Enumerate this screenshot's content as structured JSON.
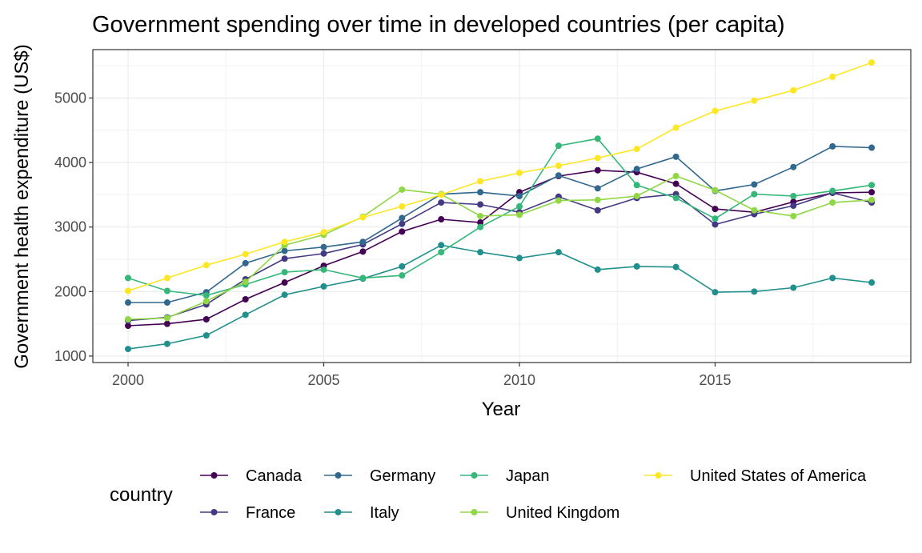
{
  "chart_data": {
    "type": "line",
    "title": "Government spending over time in developed countries (per capita)",
    "xlabel": "Year",
    "ylabel": "Government health expenditure (US$)",
    "xlim": [
      1999.1,
      2020.0
    ],
    "ylim": [
      900,
      5750
    ],
    "x_ticks": [
      2000,
      2005,
      2010,
      2015
    ],
    "y_ticks": [
      1000,
      2000,
      3000,
      4000,
      5000
    ],
    "grid": true,
    "legend_title": "country",
    "legend_position": "bottom",
    "x": [
      2000,
      2001,
      2002,
      2003,
      2004,
      2005,
      2006,
      2007,
      2008,
      2009,
      2010,
      2011,
      2012,
      2013,
      2014,
      2015,
      2016,
      2017,
      2018,
      2019
    ],
    "series": [
      {
        "name": "Canada",
        "color": "#440154",
        "values": [
          1470,
          1500,
          1570,
          1880,
          2140,
          2400,
          2620,
          2930,
          3120,
          3070,
          3540,
          3790,
          3880,
          3850,
          3670,
          3280,
          3230,
          3390,
          3530,
          3540
        ]
      },
      {
        "name": "France",
        "color": "#443A83",
        "values": [
          1550,
          1600,
          1800,
          2190,
          2510,
          2590,
          2730,
          3050,
          3380,
          3350,
          3230,
          3470,
          3260,
          3450,
          3510,
          3040,
          3200,
          3330,
          3530,
          3380
        ]
      },
      {
        "name": "Germany",
        "color": "#31688E",
        "values": [
          1830,
          1830,
          1990,
          2440,
          2630,
          2690,
          2770,
          3140,
          3510,
          3540,
          3480,
          3800,
          3600,
          3900,
          4090,
          3560,
          3660,
          3930,
          4250,
          4230
        ]
      },
      {
        "name": "Italy",
        "color": "#21908C",
        "values": [
          1110,
          1190,
          1320,
          1640,
          1950,
          2080,
          2200,
          2390,
          2720,
          2610,
          2520,
          2610,
          2340,
          2390,
          2380,
          1990,
          2000,
          2060,
          2210,
          2140
        ]
      },
      {
        "name": "Japan",
        "color": "#35B779",
        "values": [
          2210,
          2010,
          1940,
          2110,
          2300,
          2340,
          2210,
          2250,
          2610,
          3000,
          3320,
          4260,
          4370,
          3650,
          3450,
          3130,
          3510,
          3480,
          3560,
          3650
        ]
      },
      {
        "name": "United Kingdom",
        "color": "#8FD744",
        "values": [
          1570,
          1590,
          1850,
          2150,
          2720,
          2880,
          3160,
          3580,
          3510,
          3170,
          3190,
          3410,
          3420,
          3480,
          3790,
          3570,
          3260,
          3170,
          3380,
          3420
        ]
      },
      {
        "name": "United States of America",
        "color": "#FDE725",
        "values": [
          2010,
          2210,
          2410,
          2580,
          2770,
          2920,
          3150,
          3320,
          3500,
          3710,
          3840,
          3950,
          4070,
          4210,
          4540,
          4800,
          4960,
          5120,
          5330,
          5550
        ]
      }
    ]
  }
}
